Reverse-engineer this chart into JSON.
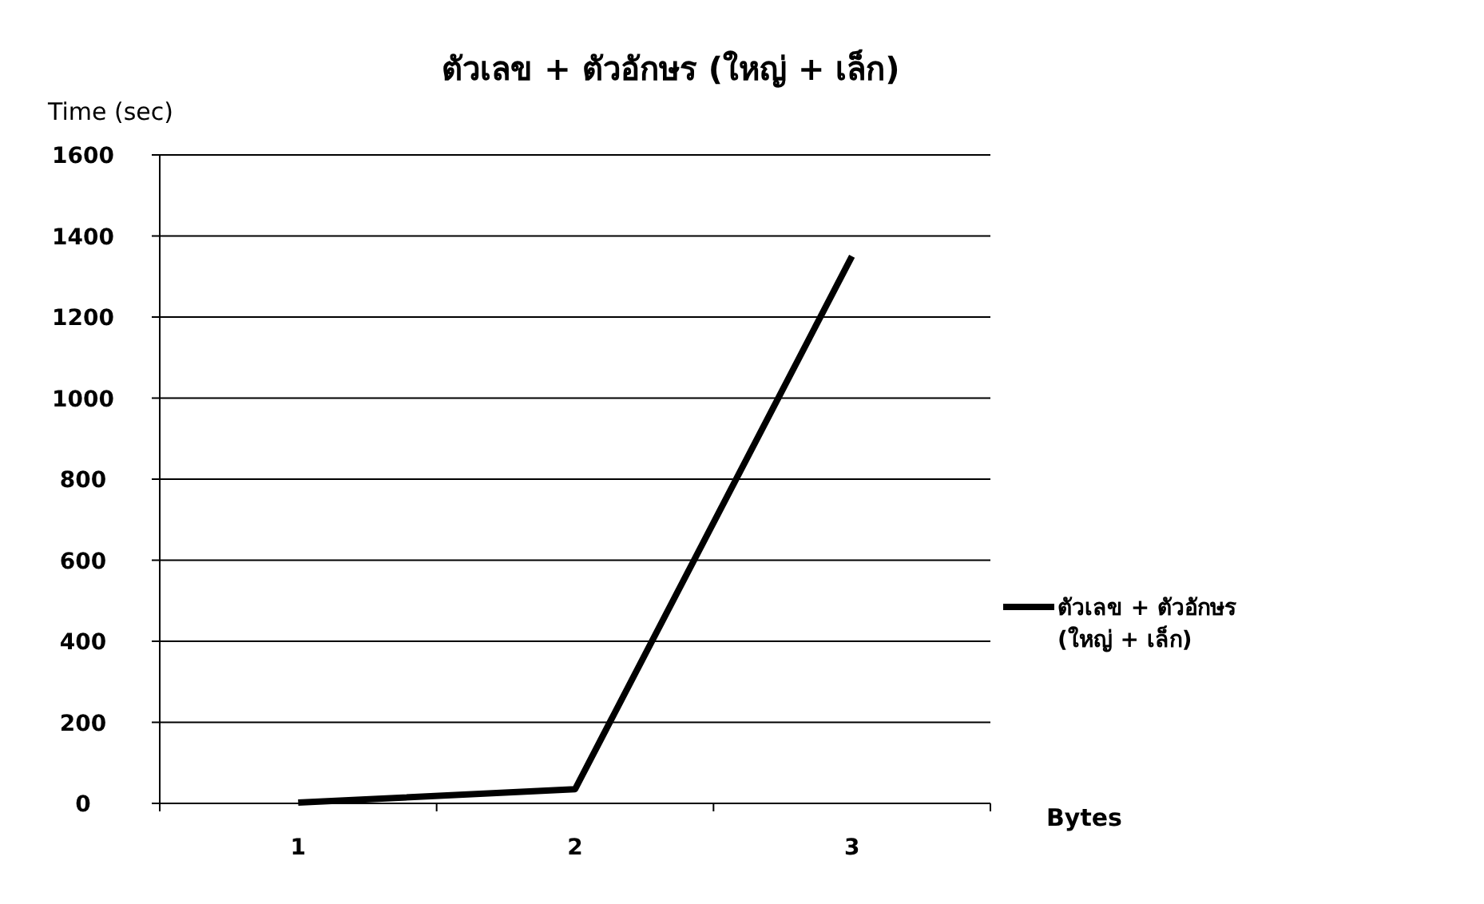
{
  "chart_data": {
    "type": "line",
    "title": "ตัวเลข + ตัวอักษร (ใหญ่ + เล็ก)",
    "ylabel": "Time (sec)",
    "xlabel": "Bytes",
    "categories": [
      "1",
      "2",
      "3"
    ],
    "series": [
      {
        "name": "ตัวเลข + ตัวอักษร (ใหญ่ + เล็ก)",
        "color": "#000000",
        "values": [
          2,
          35,
          1350
        ]
      }
    ],
    "ylim": [
      0,
      1600
    ],
    "yticks": [
      0,
      200,
      400,
      600,
      800,
      1000,
      1200,
      1400,
      1600
    ],
    "grid": "y",
    "legend": "right",
    "marker": "none",
    "line_style": "solid"
  }
}
